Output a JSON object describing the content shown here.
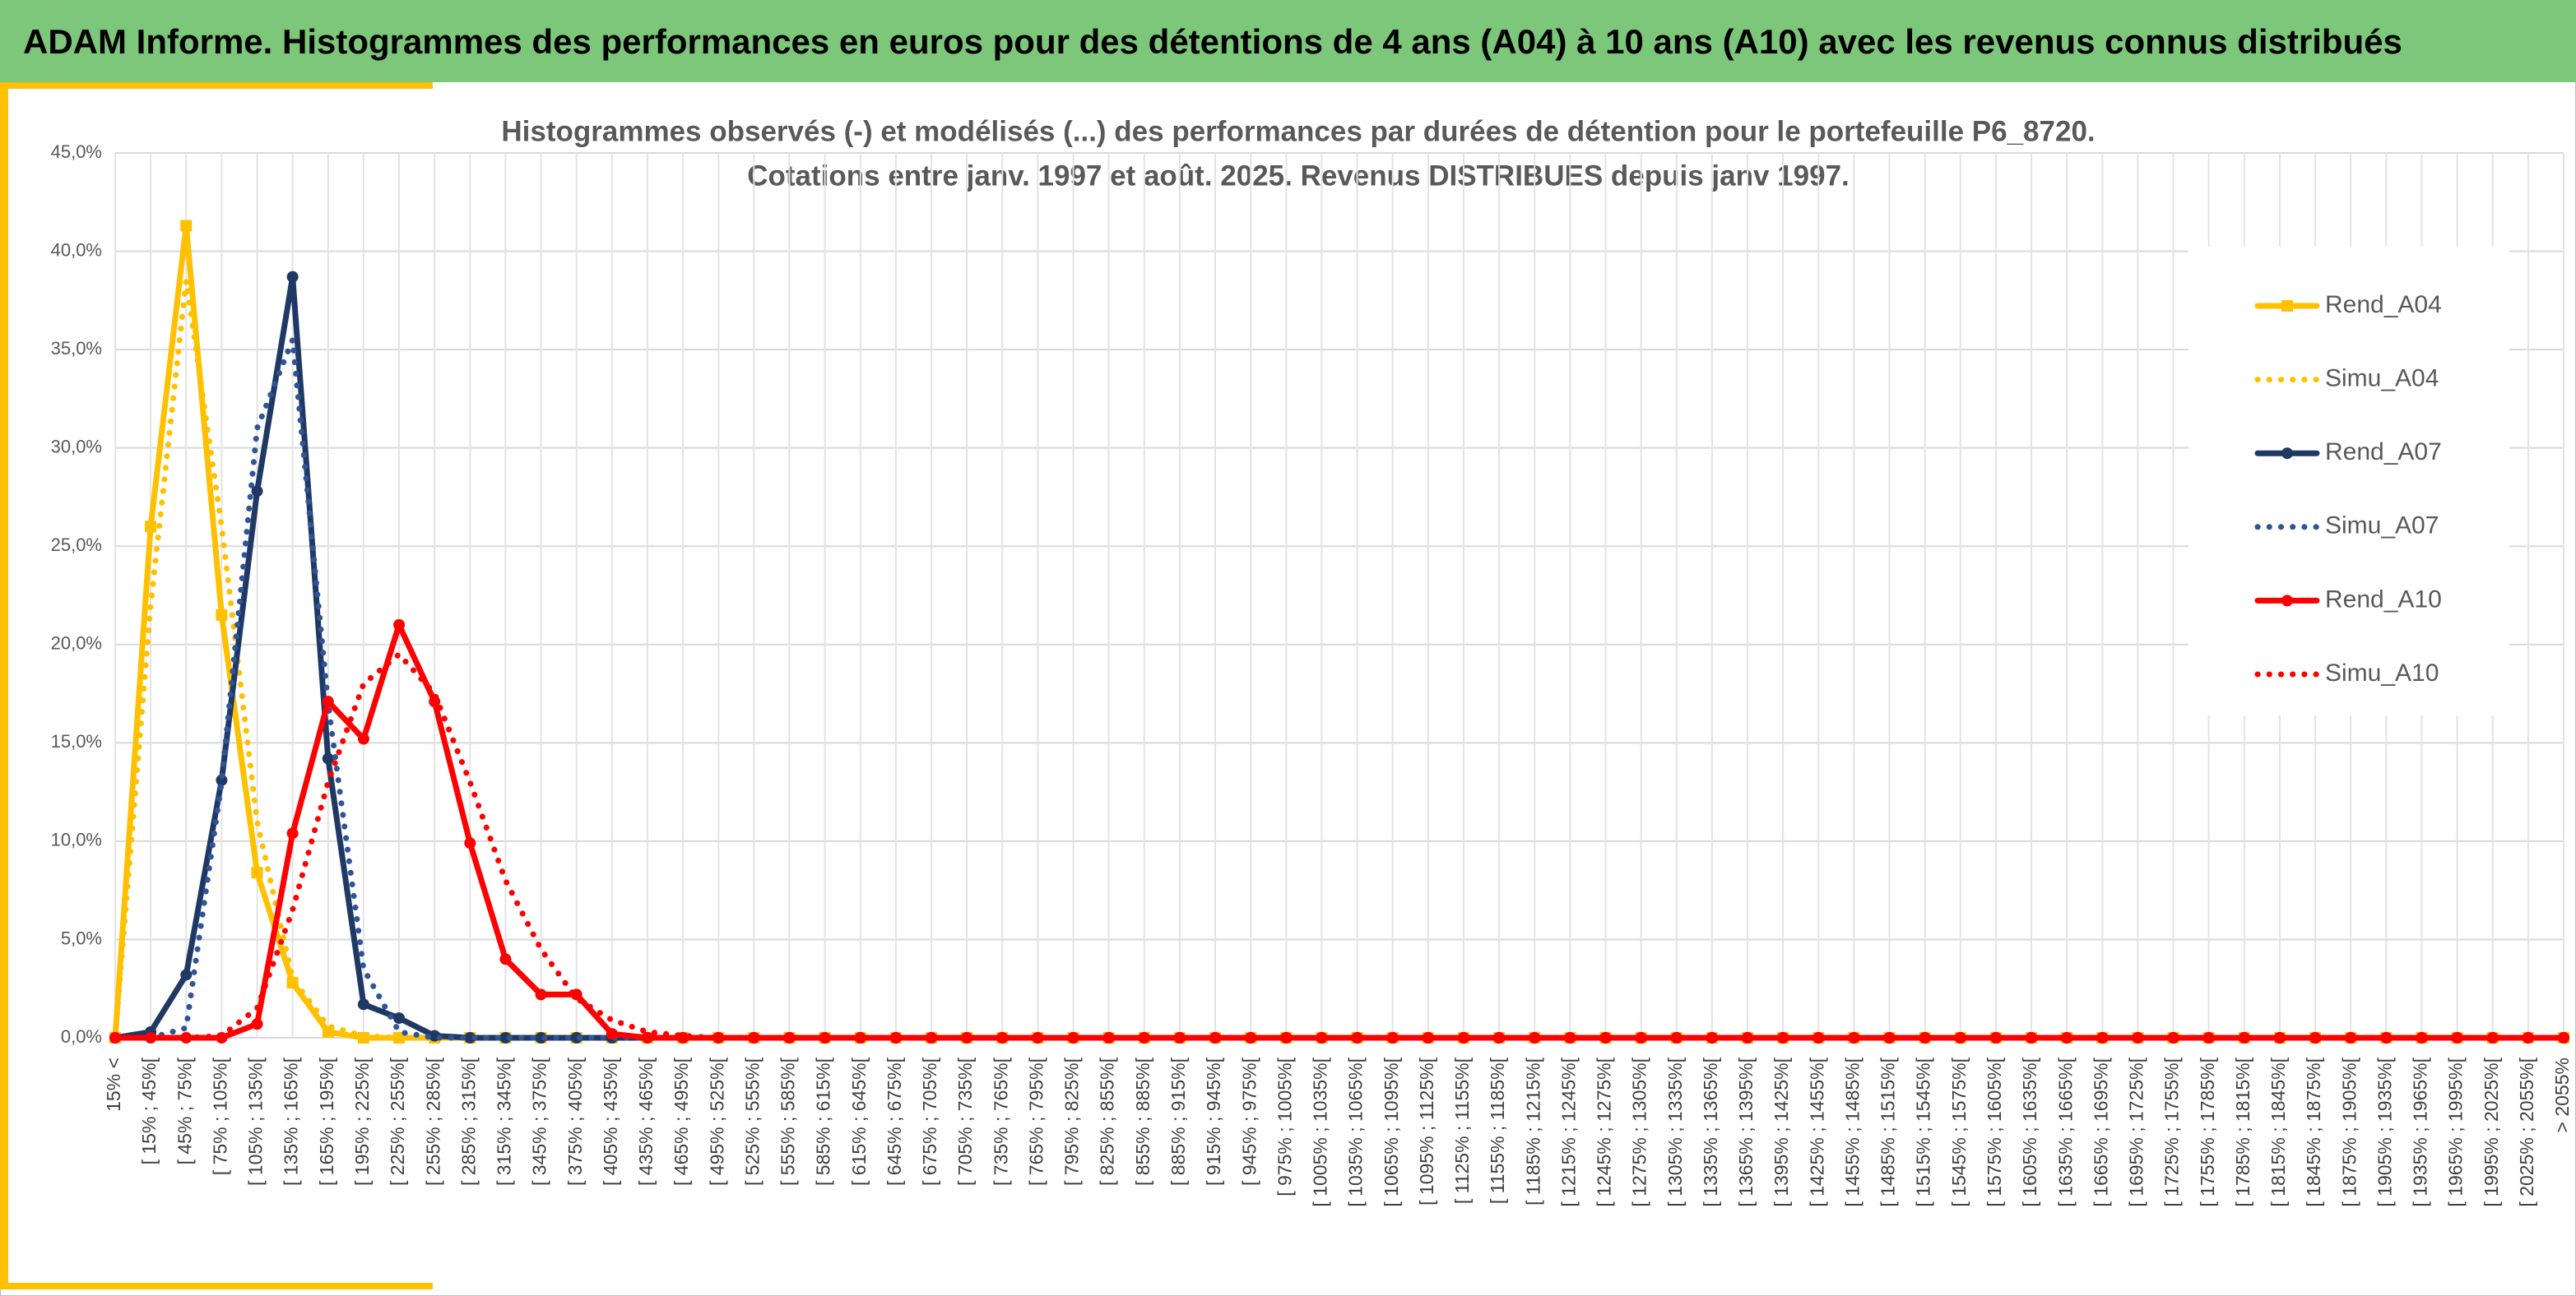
{
  "header": {
    "title": "ADAM Informe. Histogrammes des performances en euros pour des détentions de 4 ans (A04) à 10 ans (A10) avec les revenus connus distribués"
  },
  "chart_data": {
    "type": "line",
    "title": [
      "Histogrammes observés (-) et modélisés (...) des performances par durées de détention pour le portefeuille P6_8720.",
      "Cotations entre janv. 1997 et août. 2025. Revenus DISTRIBUES depuis janv 1997."
    ],
    "categories": [
      "15% <",
      "[ 15% ; 45%[",
      "[ 45% ; 75%[",
      "[ 75% ; 105%[",
      "[ 105% ; 135%[",
      "[ 135% ; 165%[",
      "[ 165% ; 195%[",
      "[ 195% ; 225%[",
      "[ 225% ; 255%[",
      "[ 255% ; 285%[",
      "[ 285% ; 315%[",
      "[ 315% ; 345%[",
      "[ 345% ; 375%[",
      "[ 375% ; 405%[",
      "[ 405% ; 435%[",
      "[ 435% ; 465%[",
      "[ 465% ; 495%[",
      "[ 495% ; 525%[",
      "[ 525% ; 555%[",
      "[ 555% ; 585%[",
      "[ 585% ; 615%[",
      "[ 615% ; 645%[",
      "[ 645% ; 675%[",
      "[ 675% ; 705%[",
      "[ 705% ; 735%[",
      "[ 735% ; 765%[",
      "[ 765% ; 795%[",
      "[ 795% ; 825%[",
      "[ 825% ; 855%[",
      "[ 855% ; 885%[",
      "[ 885% ; 915%[",
      "[ 915% ; 945%[",
      "[ 945% ; 975%[",
      "[ 975% ; 1005%[",
      "[ 1005% ; 1035%[",
      "[ 1035% ; 1065%[",
      "[ 1065% ; 1095%[",
      "[ 1095% ; 1125%[",
      "[ 1125% ; 1155%[",
      "[ 1155% ; 1185%[",
      "[ 1185% ; 1215%[",
      "[ 1215% ; 1245%[",
      "[ 1245% ; 1275%[",
      "[ 1275% ; 1305%[",
      "[ 1305% ; 1335%[",
      "[ 1335% ; 1365%[",
      "[ 1365% ; 1395%[",
      "[ 1395% ; 1425%[",
      "[ 1425% ; 1455%[",
      "[ 1455% ; 1485%[",
      "[ 1485% ; 1515%[",
      "[ 1515% ; 1545%[",
      "[ 1545% ; 1575%[",
      "[ 1575% ; 1605%[",
      "[ 1605% ; 1635%[",
      "[ 1635% ; 1665%[",
      "[ 1665% ; 1695%[",
      "[ 1695% ; 1725%[",
      "[ 1725% ; 1755%[",
      "[ 1755% ; 1785%[",
      "[ 1785% ; 1815%[",
      "[ 1815% ; 1845%[",
      "[ 1845% ; 1875%[",
      "[ 1875% ; 1905%[",
      "[ 1905% ; 1935%[",
      "[ 1935% ; 1965%[",
      "[ 1965% ; 1995%[",
      "[ 1995% ; 2025%[",
      "[ 2025% ; 2055%[",
      "> 2055%"
    ],
    "series": [
      {
        "name": "Rend_A04",
        "color": "#FFC000",
        "dash": "solid",
        "marker": "square",
        "values": [
          0,
          26,
          41.3,
          21.5,
          8.4,
          2.8,
          0.3,
          0,
          0,
          0,
          0,
          0,
          0,
          0,
          0,
          0,
          0,
          0,
          0,
          0,
          0,
          0,
          0,
          0,
          0,
          0,
          0,
          0,
          0,
          0,
          0,
          0,
          0,
          0,
          0,
          0,
          0,
          0,
          0,
          0,
          0,
          0,
          0,
          0,
          0,
          0,
          0,
          0,
          0,
          0,
          0,
          0,
          0,
          0,
          0,
          0,
          0,
          0,
          0,
          0,
          0,
          0,
          0,
          0,
          0,
          0,
          0,
          0,
          0,
          0
        ]
      },
      {
        "name": "Simu_A04",
        "color": "#FFC000",
        "dash": "dotted",
        "marker": "none",
        "values": [
          0,
          22,
          38.5,
          26,
          11,
          3,
          0.6,
          0.1,
          0,
          0,
          0,
          0,
          0,
          0,
          0,
          0,
          0,
          0,
          0,
          0,
          0,
          0,
          0,
          0,
          0,
          0,
          0,
          0,
          0,
          0,
          0,
          0,
          0,
          0,
          0,
          0,
          0,
          0,
          0,
          0,
          0,
          0,
          0,
          0,
          0,
          0,
          0,
          0,
          0,
          0,
          0,
          0,
          0,
          0,
          0,
          0,
          0,
          0,
          0,
          0,
          0,
          0,
          0,
          0,
          0,
          0,
          0,
          0,
          0,
          0
        ]
      },
      {
        "name": "Rend_A07",
        "color": "#1F3864",
        "dash": "solid",
        "marker": "circle",
        "values": [
          0,
          0.3,
          3.2,
          13.1,
          27.8,
          38.7,
          14.2,
          1.7,
          1,
          0.1,
          0,
          0,
          0,
          0,
          0,
          0,
          0,
          0,
          0,
          0,
          0,
          0,
          0,
          0,
          0,
          0,
          0,
          0,
          0,
          0,
          0,
          0,
          0,
          0,
          0,
          0,
          0,
          0,
          0,
          0,
          0,
          0,
          0,
          0,
          0,
          0,
          0,
          0,
          0,
          0,
          0,
          0,
          0,
          0,
          0,
          0,
          0,
          0,
          0,
          0,
          0,
          0,
          0,
          0,
          0,
          0,
          0,
          0,
          0,
          0
        ]
      },
      {
        "name": "Simu_A07",
        "color": "#2F5597",
        "dash": "dotted",
        "marker": "none",
        "values": [
          0,
          0,
          0.5,
          13,
          31,
          35.5,
          17,
          3.5,
          0.3,
          0,
          0,
          0,
          0,
          0,
          0,
          0,
          0,
          0,
          0,
          0,
          0,
          0,
          0,
          0,
          0,
          0,
          0,
          0,
          0,
          0,
          0,
          0,
          0,
          0,
          0,
          0,
          0,
          0,
          0,
          0,
          0,
          0,
          0,
          0,
          0,
          0,
          0,
          0,
          0,
          0,
          0,
          0,
          0,
          0,
          0,
          0,
          0,
          0,
          0,
          0,
          0,
          0,
          0,
          0,
          0,
          0,
          0,
          0,
          0,
          0
        ]
      },
      {
        "name": "Rend_A10",
        "color": "#FF0000",
        "dash": "solid",
        "marker": "circle",
        "values": [
          0,
          0,
          0,
          0,
          0.7,
          10.4,
          17.1,
          15.2,
          21,
          17.1,
          9.9,
          4,
          2.2,
          2.2,
          0.2,
          0,
          0,
          0,
          0,
          0,
          0,
          0,
          0,
          0,
          0,
          0,
          0,
          0,
          0,
          0,
          0,
          0,
          0,
          0,
          0,
          0,
          0,
          0,
          0,
          0,
          0,
          0,
          0,
          0,
          0,
          0,
          0,
          0,
          0,
          0,
          0,
          0,
          0,
          0,
          0,
          0,
          0,
          0,
          0,
          0,
          0,
          0,
          0,
          0,
          0,
          0,
          0,
          0,
          0,
          0
        ]
      },
      {
        "name": "Simu_A10",
        "color": "#FF0000",
        "dash": "dotted",
        "marker": "none",
        "values": [
          0,
          0,
          0,
          0.1,
          1.5,
          6.5,
          13,
          18,
          19.5,
          17.5,
          13,
          8,
          4.5,
          2,
          0.9,
          0.3,
          0.1,
          0,
          0,
          0,
          0,
          0,
          0,
          0,
          0,
          0,
          0,
          0,
          0,
          0,
          0,
          0,
          0,
          0,
          0,
          0,
          0,
          0,
          0,
          0,
          0,
          0,
          0,
          0,
          0,
          0,
          0,
          0,
          0,
          0,
          0,
          0,
          0,
          0,
          0,
          0,
          0,
          0,
          0,
          0,
          0,
          0,
          0,
          0,
          0,
          0,
          0,
          0,
          0,
          0
        ]
      }
    ],
    "ylim": [
      0,
      45
    ],
    "yticks": [
      {
        "value": 0,
        "label": "0,0%"
      },
      {
        "value": 5,
        "label": "5,0%"
      },
      {
        "value": 10,
        "label": "10,0%"
      },
      {
        "value": 15,
        "label": "15,0%"
      },
      {
        "value": 20,
        "label": "20,0%"
      },
      {
        "value": 25,
        "label": "25,0%"
      },
      {
        "value": 30,
        "label": "30,0%"
      },
      {
        "value": 35,
        "label": "35,0%"
      },
      {
        "value": 40,
        "label": "40,0%"
      },
      {
        "value": 45,
        "label": "45,0%"
      }
    ],
    "grid": true,
    "legend": "right"
  }
}
